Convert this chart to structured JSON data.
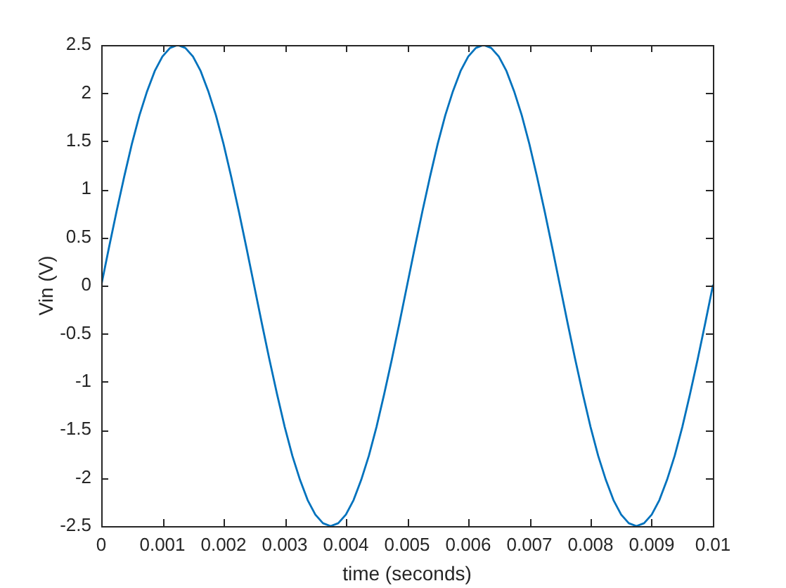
{
  "chart_data": {
    "type": "line",
    "xlabel": "time (seconds)",
    "ylabel": "Vin (V)",
    "x": [
      0,
      0.000125,
      0.00025,
      0.000375,
      0.0005,
      0.000625,
      0.00075,
      0.000875,
      0.001,
      0.001125,
      0.00125,
      0.001375,
      0.0015,
      0.001625,
      0.00175,
      0.001875,
      0.002,
      0.002125,
      0.00225,
      0.002375,
      0.0025,
      0.002625,
      0.00275,
      0.002875,
      0.003,
      0.003125,
      0.00325,
      0.003375,
      0.0035,
      0.003625,
      0.00375,
      0.003875,
      0.004,
      0.004125,
      0.00425,
      0.004375,
      0.0045,
      0.004625,
      0.00475,
      0.004875,
      0.005,
      0.005125,
      0.00525,
      0.005375,
      0.0055,
      0.005625,
      0.00575,
      0.005875,
      0.006,
      0.006125,
      0.00625,
      0.006375,
      0.0065,
      0.006625,
      0.00675,
      0.006875,
      0.007,
      0.007125,
      0.00725,
      0.007375,
      0.0075,
      0.007625,
      0.00775,
      0.007875,
      0.008,
      0.008125,
      0.00825,
      0.008375,
      0.0085,
      0.008625,
      0.00875,
      0.008875,
      0.009,
      0.009125,
      0.00925,
      0.009375,
      0.0095,
      0.009625,
      0.00975,
      0.009875,
      0.01
    ],
    "values": [
      0,
      0.39,
      0.77,
      1.13,
      1.47,
      1.77,
      2.02,
      2.23,
      2.38,
      2.47,
      2.5,
      2.47,
      2.38,
      2.23,
      2.02,
      1.77,
      1.47,
      1.13,
      0.77,
      0.39,
      0,
      -0.39,
      -0.77,
      -1.13,
      -1.47,
      -1.77,
      -2.02,
      -2.23,
      -2.38,
      -2.47,
      -2.5,
      -2.47,
      -2.38,
      -2.23,
      -2.02,
      -1.77,
      -1.47,
      -1.13,
      -0.77,
      -0.39,
      0,
      0.39,
      0.77,
      1.13,
      1.47,
      1.77,
      2.02,
      2.23,
      2.38,
      2.47,
      2.5,
      2.47,
      2.38,
      2.23,
      2.02,
      1.77,
      1.47,
      1.13,
      0.77,
      0.39,
      0,
      -0.39,
      -0.77,
      -1.13,
      -1.47,
      -1.77,
      -2.02,
      -2.23,
      -2.38,
      -2.47,
      -2.5,
      -2.47,
      -2.38,
      -2.23,
      -2.02,
      -1.77,
      -1.47,
      -1.13,
      -0.77,
      -0.39,
      0
    ],
    "color": "#0072bd",
    "xlim": [
      0,
      0.01
    ],
    "xticks": [
      0,
      0.001,
      0.002,
      0.003,
      0.004,
      0.005,
      0.006,
      0.007,
      0.008,
      0.009,
      0.01
    ],
    "ylim": [
      -2.5,
      2.5
    ],
    "yticks": [
      -2.5,
      -2,
      -1.5,
      -1,
      -0.5,
      0,
      0.5,
      1,
      1.5,
      2,
      2.5
    ]
  }
}
